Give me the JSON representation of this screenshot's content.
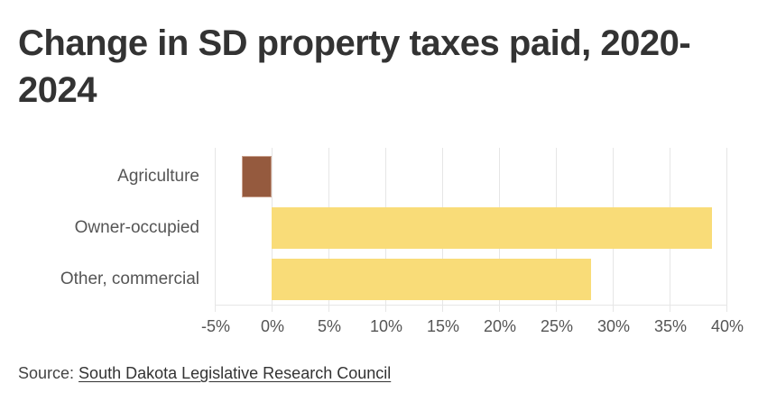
{
  "title": "Change in SD property taxes paid, 2020-2024",
  "source": {
    "prefix": "Source: ",
    "link_text": "South Dakota Legislative Research Council"
  },
  "colors": {
    "negative": "#955A3E",
    "positive": "#F9DC78",
    "grid": "#E6E6E6",
    "text": "#555555",
    "title": "#333333"
  },
  "chart_data": {
    "type": "bar",
    "orientation": "horizontal",
    "title": "Change in SD property taxes paid, 2020-2024",
    "categories": [
      "Agriculture",
      "Owner-occupied",
      "Other, commercial"
    ],
    "values": [
      -2.6,
      38.7,
      28.1
    ],
    "value_unit": "%",
    "xlabel": "",
    "ylabel": "",
    "xlim": [
      -5,
      40
    ],
    "x_ticks": [
      -5,
      0,
      5,
      10,
      15,
      20,
      25,
      30,
      35,
      40
    ],
    "x_tick_labels": [
      "-5%",
      "0%",
      "5%",
      "10%",
      "15%",
      "20%",
      "25%",
      "30%",
      "35%",
      "40%"
    ],
    "grid": true,
    "legend": null,
    "bar_colors": [
      "#955A3E",
      "#F9DC78",
      "#F9DC78"
    ],
    "source": "Source: South Dakota Legislative Research Council"
  }
}
